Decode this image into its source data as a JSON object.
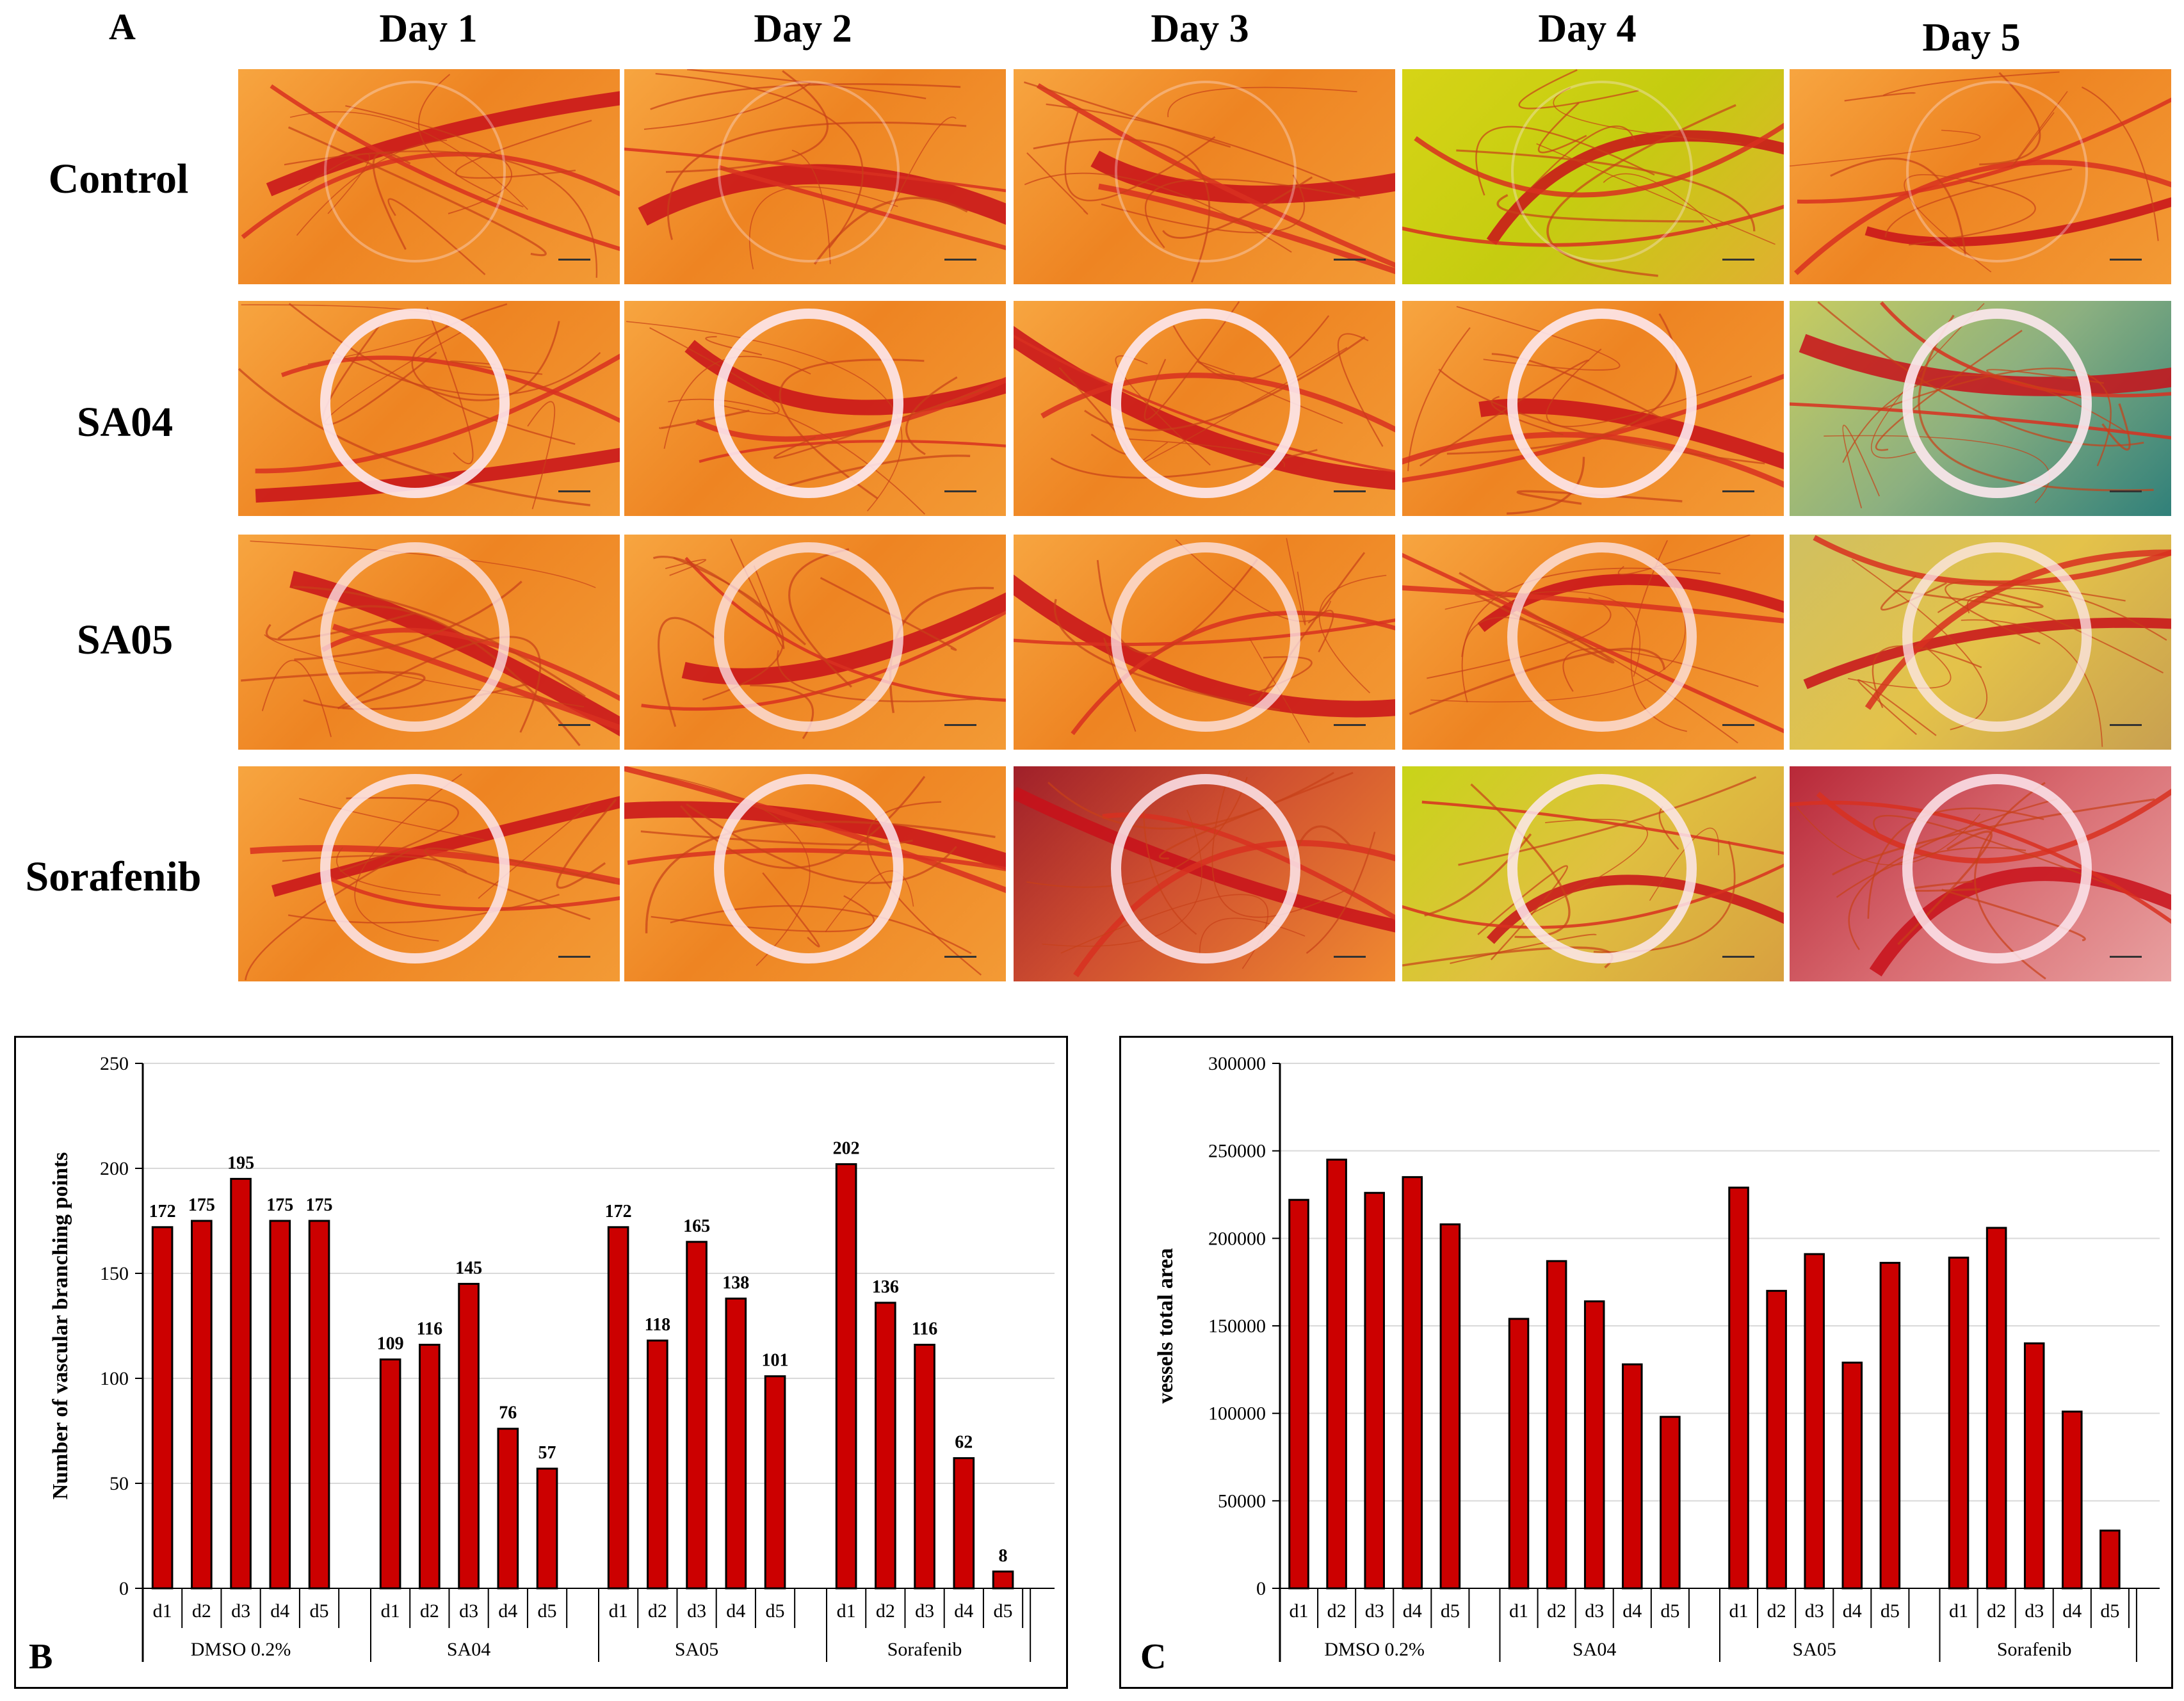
{
  "panel_a": {
    "letter": "A",
    "days": [
      "Day 1",
      "Day 2",
      "Day 3",
      "Day 4",
      "Day 5"
    ],
    "rows": [
      "Control",
      "SA04",
      "SA05",
      "Sorafenib"
    ]
  },
  "chart_data": [
    {
      "panel": "B",
      "type": "bar",
      "ylabel": "Number of vascular branching points",
      "xlabel": "",
      "ylim": [
        0,
        250
      ],
      "yticks": [
        "0",
        "50",
        "100",
        "150",
        "200",
        "250"
      ],
      "grid": true,
      "show_value_labels": true,
      "groups": [
        "DMSO 0.2%",
        "SA04",
        "SA05",
        "Sorafenib"
      ],
      "categories": [
        "d1",
        "d2",
        "d3",
        "d4",
        "d5"
      ],
      "series_color": "#cc0000",
      "series": [
        {
          "name": "DMSO 0.2%",
          "values": [
            172,
            175,
            195,
            175,
            175
          ]
        },
        {
          "name": "SA04",
          "values": [
            109,
            116,
            145,
            76,
            57
          ]
        },
        {
          "name": "SA05",
          "values": [
            172,
            118,
            165,
            138,
            101
          ]
        },
        {
          "name": "Sorafenib",
          "values": [
            202,
            136,
            116,
            62,
            8
          ]
        }
      ]
    },
    {
      "panel": "C",
      "type": "bar",
      "ylabel": "vessels total area",
      "xlabel": "",
      "ylim": [
        0,
        300000
      ],
      "yticks": [
        "0",
        "50000",
        "100000",
        "150000",
        "200000",
        "250000",
        "300000"
      ],
      "grid": true,
      "show_value_labels": false,
      "groups": [
        "DMSO 0.2%",
        "SA04",
        "SA05",
        "Sorafenib"
      ],
      "categories": [
        "d1",
        "d2",
        "d3",
        "d4",
        "d5"
      ],
      "series_color": "#cc0000",
      "series": [
        {
          "name": "DMSO 0.2%",
          "values": [
            222000,
            245000,
            226000,
            235000,
            208000
          ]
        },
        {
          "name": "SA04",
          "values": [
            154000,
            187000,
            164000,
            128000,
            98000
          ]
        },
        {
          "name": "SA05",
          "values": [
            229000,
            170000,
            191000,
            129000,
            186000
          ]
        },
        {
          "name": "Sorafenib",
          "values": [
            189000,
            206000,
            140000,
            101000,
            33000
          ]
        }
      ]
    }
  ]
}
